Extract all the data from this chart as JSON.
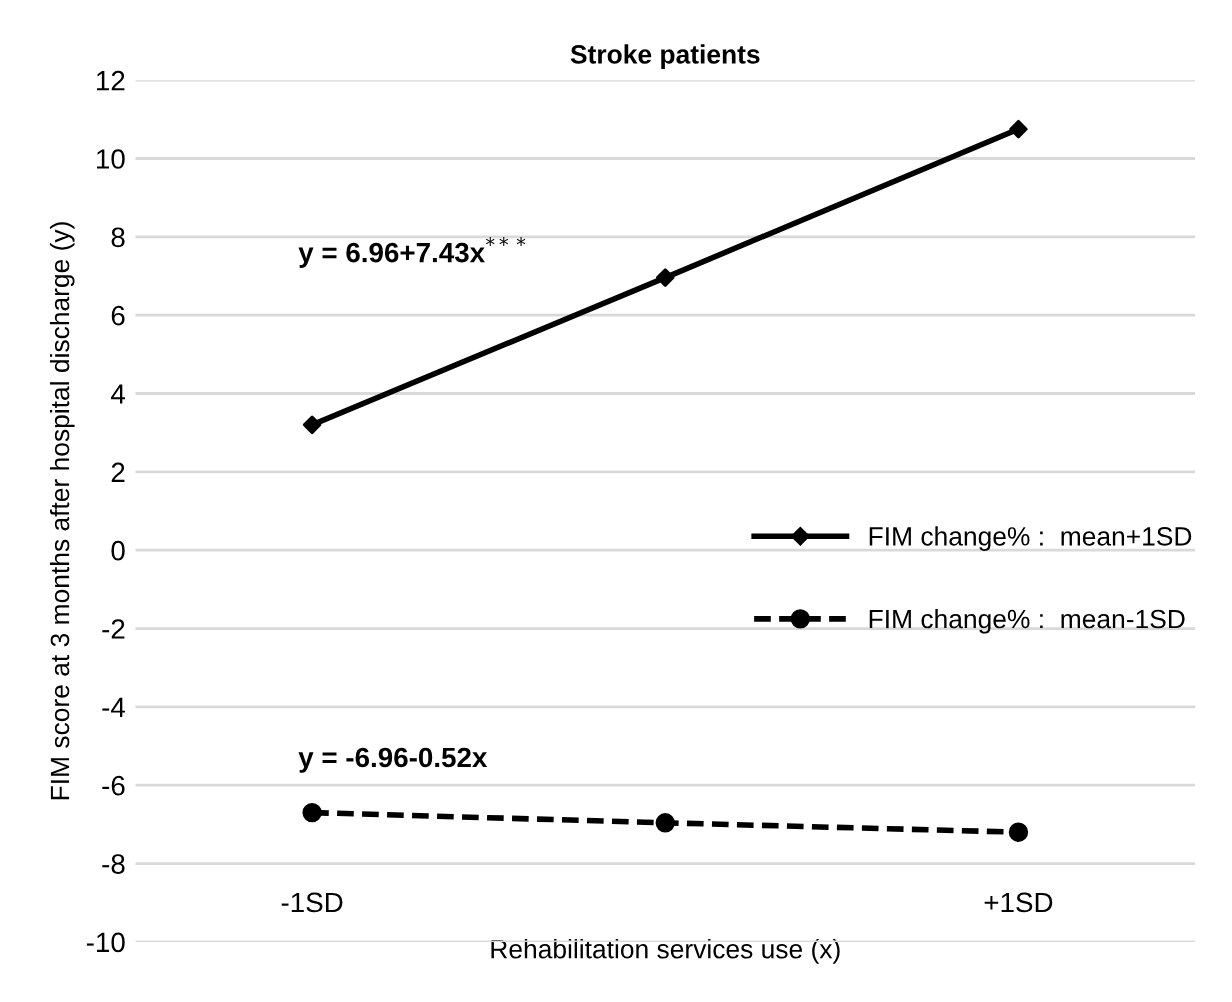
{
  "chart_data": {
    "type": "line",
    "title": "Stroke patients",
    "xlabel": "Rehabilitation services use (x)",
    "ylabel": "FIM score at 3 months after hospital discharge (y)",
    "categories": [
      "-1SD",
      null,
      "+1SD"
    ],
    "series": [
      {
        "name": "FIM change% :  mean+1SD",
        "color": "#000000",
        "values": [
          3.2,
          6.96,
          10.75
        ],
        "marker": "diamond",
        "line_style": "solid"
      },
      {
        "name": "FIM change% :  mean-1SD",
        "color": "#000000",
        "values": [
          -6.7,
          -6.96,
          -7.2
        ],
        "marker": "circle",
        "line_style": "dashed"
      }
    ],
    "annotations": [
      "y = 6.96+7.43x$^{***}$",
      "y = -6.96-0.52x"
    ],
    "ylim": [
      -10,
      12
    ],
    "yticks": [
      -10,
      -8,
      -6,
      -4,
      -2,
      0,
      2,
      4,
      6,
      8,
      10,
      12
    ],
    "grid": "y",
    "legend": "right"
  }
}
